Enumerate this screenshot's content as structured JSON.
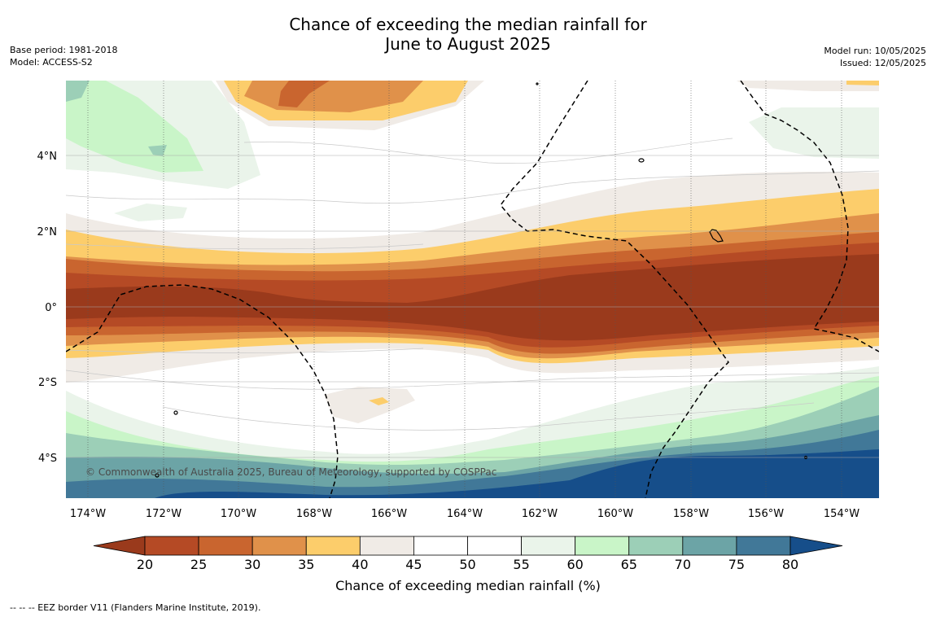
{
  "title": {
    "line1": "Chance of exceeding the median rainfall for",
    "line2": "June to August 2025"
  },
  "meta_left": {
    "base_period": "Base period: 1981-2018",
    "model": "Model: ACCESS-S2"
  },
  "meta_right": {
    "model_run": "Model run: 10/05/2025",
    "issued": "Issued: 12/05/2025"
  },
  "map": {
    "lat_labels": [
      "4°N",
      "2°N",
      "0°",
      "2°S",
      "4°S"
    ],
    "lon_labels": [
      "174°W",
      "172°W",
      "170°W",
      "168°W",
      "166°W",
      "164°W",
      "162°W",
      "160°W",
      "158°W",
      "156°W",
      "154°W"
    ],
    "copyright": "© Commonwealth of Australia 2025, Bureau of Meteorology, supported by COSPPac"
  },
  "colorbar": {
    "ticks": [
      "20",
      "25",
      "30",
      "35",
      "40",
      "45",
      "50",
      "55",
      "60",
      "65",
      "70",
      "75",
      "80"
    ],
    "colors": [
      "#9a3a1c",
      "#b54a25",
      "#c9652f",
      "#e0914a",
      "#fccd6b",
      "#f0ebe6",
      "#ffffff",
      "#ffffff",
      "#eaf4ea",
      "#c9f5c8",
      "#9ccfb7",
      "#6ca4a6",
      "#417898",
      "#164e8a"
    ],
    "label": "Chance of exceeding median rainfall (%)"
  },
  "footnote": "--  --  -- EEZ border V11 (Flanders Marine Institute, 2019)."
}
